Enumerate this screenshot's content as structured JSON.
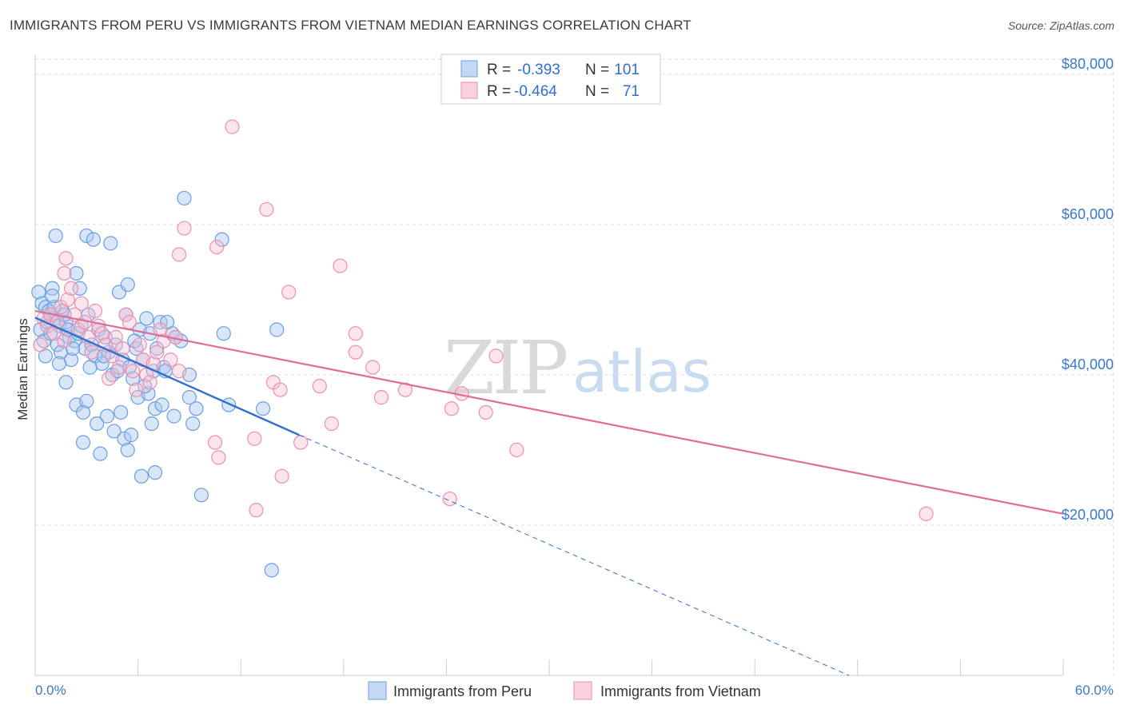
{
  "header": {
    "title": "IMMIGRANTS FROM PERU VS IMMIGRANTS FROM VIETNAM MEDIAN EARNINGS CORRELATION CHART",
    "source": "Source: ZipAtlas.com"
  },
  "watermark": {
    "zip": "ZIP",
    "atlas": "atlas"
  },
  "colors": {
    "peru_fill": "#a9c8f0",
    "peru_stroke": "#6a9fe0",
    "peru_line": "#2f6fcf",
    "vietnam_fill": "#f7bdd0",
    "vietnam_stroke": "#ec8fb0",
    "vietnam_line": "#e06c96",
    "accent_text": "#3a78c9",
    "grid": "#dddddd"
  },
  "legend": {
    "rows": [
      {
        "r_label": "R =",
        "r_value": "-0.393",
        "n_label": "N =",
        "n_value": "101"
      },
      {
        "r_label": "R =",
        "r_value": "-0.464",
        "n_label": "N =",
        "n_value": "71"
      }
    ]
  },
  "chart_data": {
    "type": "scatter",
    "title": "IMMIGRANTS FROM PERU VS IMMIGRANTS FROM VIETNAM MEDIAN EARNINGS CORRELATION CHART",
    "xlabel": "",
    "ylabel": "Median Earnings",
    "xlim": [
      0,
      60
    ],
    "ylim": [
      0,
      82000
    ],
    "x_tick_labels": [
      "0.0%",
      "60.0%"
    ],
    "y_ticks": [
      20000,
      40000,
      60000,
      80000
    ],
    "y_tick_labels": [
      "$20,000",
      "$40,000",
      "$60,000",
      "$80,000"
    ],
    "grid": true,
    "legend_position": "top-center",
    "series": [
      {
        "name": "Immigrants from Peru",
        "r": -0.393,
        "n": 101,
        "trend": {
          "x": [
            0,
            15.4
          ],
          "y": [
            47600,
            32000
          ],
          "dashed_extension_to": [
            47.5,
            0
          ]
        },
        "points": [
          [
            0.2,
            51000
          ],
          [
            0.4,
            49500
          ],
          [
            0.6,
            49000
          ],
          [
            0.8,
            48500
          ],
          [
            1.0,
            51500
          ],
          [
            1.2,
            47500
          ],
          [
            1.4,
            46500
          ],
          [
            1.6,
            48500
          ],
          [
            1.8,
            47000
          ],
          [
            2.0,
            45000
          ],
          [
            0.3,
            46000
          ],
          [
            0.5,
            44500
          ],
          [
            0.7,
            47000
          ],
          [
            0.9,
            45500
          ],
          [
            1.1,
            49000
          ],
          [
            1.3,
            44000
          ],
          [
            1.5,
            43000
          ],
          [
            1.7,
            48000
          ],
          [
            1.9,
            46000
          ],
          [
            2.1,
            42000
          ],
          [
            2.3,
            44500
          ],
          [
            2.5,
            45500
          ],
          [
            2.7,
            46500
          ],
          [
            2.9,
            43500
          ],
          [
            3.1,
            48000
          ],
          [
            3.3,
            44000
          ],
          [
            3.5,
            42500
          ],
          [
            3.7,
            46000
          ],
          [
            3.9,
            41500
          ],
          [
            4.1,
            45000
          ],
          [
            4.3,
            43000
          ],
          [
            4.5,
            40000
          ],
          [
            4.7,
            44000
          ],
          [
            4.9,
            51000
          ],
          [
            5.1,
            42000
          ],
          [
            5.3,
            48000
          ],
          [
            5.5,
            41000
          ],
          [
            5.7,
            39500
          ],
          [
            5.9,
            43500
          ],
          [
            6.1,
            46000
          ],
          [
            6.3,
            42000
          ],
          [
            6.5,
            47500
          ],
          [
            6.7,
            45500
          ],
          [
            6.9,
            40500
          ],
          [
            7.1,
            43500
          ],
          [
            7.3,
            47000
          ],
          [
            7.5,
            41000
          ],
          [
            8.0,
            45500
          ],
          [
            8.5,
            44500
          ],
          [
            9.0,
            40000
          ],
          [
            1.2,
            58500
          ],
          [
            3.0,
            58500
          ],
          [
            3.4,
            58000
          ],
          [
            4.4,
            57500
          ],
          [
            5.4,
            52000
          ],
          [
            2.4,
            53500
          ],
          [
            2.6,
            51500
          ],
          [
            1.0,
            50500
          ],
          [
            8.7,
            63500
          ],
          [
            10.9,
            58000
          ],
          [
            7.7,
            47000
          ],
          [
            8.2,
            45000
          ],
          [
            11.0,
            45500
          ],
          [
            14.1,
            46000
          ],
          [
            1.8,
            39000
          ],
          [
            2.4,
            36000
          ],
          [
            3.0,
            36500
          ],
          [
            4.2,
            34500
          ],
          [
            5.0,
            35000
          ],
          [
            6.0,
            37000
          ],
          [
            6.6,
            37500
          ],
          [
            7.0,
            35500
          ],
          [
            7.4,
            36000
          ],
          [
            2.8,
            35000
          ],
          [
            3.6,
            33500
          ],
          [
            4.6,
            32500
          ],
          [
            5.2,
            31500
          ],
          [
            5.6,
            32000
          ],
          [
            6.8,
            33500
          ],
          [
            8.1,
            34500
          ],
          [
            2.8,
            31000
          ],
          [
            3.8,
            29500
          ],
          [
            5.4,
            30000
          ],
          [
            6.2,
            26500
          ],
          [
            7.0,
            27000
          ],
          [
            9.4,
            35500
          ],
          [
            9.7,
            24000
          ],
          [
            11.3,
            36000
          ],
          [
            13.3,
            35500
          ],
          [
            9.2,
            33500
          ],
          [
            13.8,
            14000
          ],
          [
            0.6,
            42500
          ],
          [
            1.4,
            41500
          ],
          [
            2.2,
            43500
          ],
          [
            3.2,
            41000
          ],
          [
            4.0,
            42500
          ],
          [
            4.8,
            40500
          ],
          [
            5.8,
            44500
          ],
          [
            6.4,
            38500
          ],
          [
            7.6,
            40500
          ],
          [
            9.0,
            37000
          ]
        ]
      },
      {
        "name": "Immigrants from Vietnam",
        "r": -0.464,
        "n": 71,
        "trend": {
          "x": [
            0,
            60
          ],
          "y": [
            48500,
            21500
          ]
        },
        "points": [
          [
            0.3,
            44000
          ],
          [
            0.5,
            47500
          ],
          [
            0.7,
            46500
          ],
          [
            0.9,
            48000
          ],
          [
            1.1,
            45500
          ],
          [
            1.3,
            47000
          ],
          [
            1.5,
            49000
          ],
          [
            1.7,
            44500
          ],
          [
            1.9,
            50000
          ],
          [
            2.1,
            51500
          ],
          [
            2.3,
            48000
          ],
          [
            2.5,
            46000
          ],
          [
            2.7,
            49500
          ],
          [
            2.9,
            47000
          ],
          [
            3.1,
            45000
          ],
          [
            3.3,
            43000
          ],
          [
            3.5,
            48500
          ],
          [
            3.7,
            46500
          ],
          [
            3.9,
            45500
          ],
          [
            4.1,
            44000
          ],
          [
            4.3,
            39500
          ],
          [
            4.5,
            42500
          ],
          [
            4.7,
            45000
          ],
          [
            4.9,
            41000
          ],
          [
            5.1,
            43500
          ],
          [
            5.3,
            48000
          ],
          [
            5.5,
            47000
          ],
          [
            5.7,
            40500
          ],
          [
            5.9,
            38000
          ],
          [
            6.1,
            44000
          ],
          [
            6.3,
            42000
          ],
          [
            6.5,
            40000
          ],
          [
            6.7,
            39000
          ],
          [
            6.9,
            41500
          ],
          [
            7.1,
            43000
          ],
          [
            7.3,
            46000
          ],
          [
            7.5,
            44500
          ],
          [
            7.9,
            42000
          ],
          [
            8.2,
            45000
          ],
          [
            8.4,
            40500
          ],
          [
            1.8,
            55500
          ],
          [
            1.7,
            53500
          ],
          [
            8.4,
            56000
          ],
          [
            8.7,
            59500
          ],
          [
            10.6,
            57000
          ],
          [
            11.5,
            73000
          ],
          [
            13.5,
            62000
          ],
          [
            14.8,
            51000
          ],
          [
            17.8,
            54500
          ],
          [
            18.7,
            43000
          ],
          [
            18.7,
            45500
          ],
          [
            19.7,
            41000
          ],
          [
            20.2,
            37000
          ],
          [
            21.6,
            38000
          ],
          [
            24.3,
            35500
          ],
          [
            24.9,
            37500
          ],
          [
            26.9,
            42500
          ],
          [
            26.3,
            35000
          ],
          [
            28.1,
            30000
          ],
          [
            10.5,
            31000
          ],
          [
            10.7,
            29000
          ],
          [
            12.8,
            31500
          ],
          [
            13.9,
            39000
          ],
          [
            14.3,
            38000
          ],
          [
            16.6,
            38500
          ],
          [
            15.5,
            31000
          ],
          [
            17.3,
            33500
          ],
          [
            12.9,
            22000
          ],
          [
            14.4,
            26500
          ],
          [
            24.2,
            23500
          ],
          [
            52.0,
            21500
          ]
        ]
      }
    ]
  },
  "bottom_legend": {
    "items": [
      {
        "label": "Immigrants from Peru"
      },
      {
        "label": "Immigrants from Vietnam"
      }
    ]
  }
}
